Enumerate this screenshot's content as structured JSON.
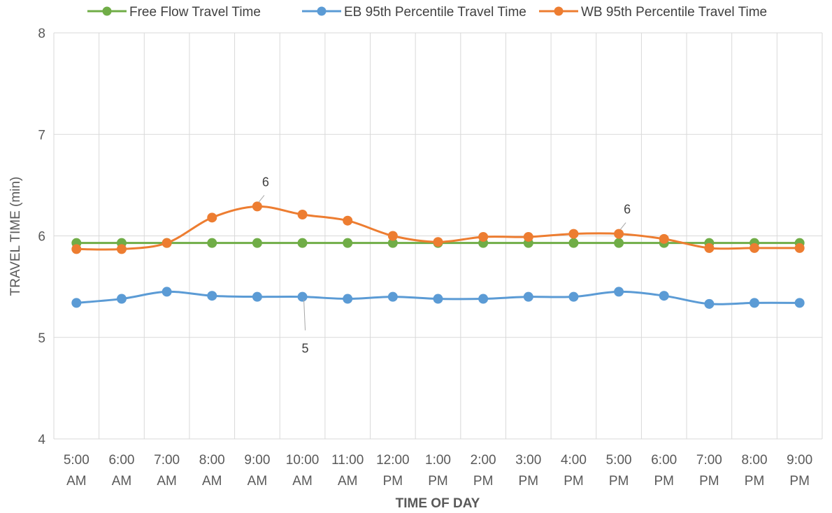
{
  "chart_data": {
    "type": "line",
    "title": "",
    "xlabel": "TIME OF DAY",
    "ylabel": "TRAVEL TIME (min)",
    "ylim": [
      4,
      8
    ],
    "yticks": [
      4,
      5,
      6,
      7,
      8
    ],
    "grid": true,
    "legend_position": "top",
    "categories": [
      [
        "5:00",
        "AM"
      ],
      [
        "6:00",
        "AM"
      ],
      [
        "7:00",
        "AM"
      ],
      [
        "8:00",
        "AM"
      ],
      [
        "9:00",
        "AM"
      ],
      [
        "10:00",
        "AM"
      ],
      [
        "11:00",
        "AM"
      ],
      [
        "12:00",
        "PM"
      ],
      [
        "1:00",
        "PM"
      ],
      [
        "2:00",
        "PM"
      ],
      [
        "3:00",
        "PM"
      ],
      [
        "4:00",
        "PM"
      ],
      [
        "5:00",
        "PM"
      ],
      [
        "6:00",
        "PM"
      ],
      [
        "7:00",
        "PM"
      ],
      [
        "8:00",
        "PM"
      ],
      [
        "9:00",
        "PM"
      ]
    ],
    "series": [
      {
        "name": "Free Flow Travel Time",
        "color": "#70AD47",
        "smooth": false,
        "values": [
          5.93,
          5.93,
          5.93,
          5.93,
          5.93,
          5.93,
          5.93,
          5.93,
          5.93,
          5.93,
          5.93,
          5.93,
          5.93,
          5.93,
          5.93,
          5.93,
          5.93
        ]
      },
      {
        "name": "EB 95th Percentile Travel Time",
        "color": "#5B9BD5",
        "smooth": true,
        "values": [
          5.34,
          5.38,
          5.45,
          5.41,
          5.4,
          5.4,
          5.38,
          5.4,
          5.38,
          5.38,
          5.4,
          5.4,
          5.45,
          5.41,
          5.33,
          5.34,
          5.34
        ]
      },
      {
        "name": "WB 95th Percentile Travel Time",
        "color": "#ED7D31",
        "smooth": true,
        "values": [
          5.87,
          5.87,
          5.93,
          6.18,
          6.29,
          6.21,
          6.15,
          6.0,
          5.94,
          5.99,
          5.99,
          6.02,
          6.02,
          5.97,
          5.88,
          5.88,
          5.88
        ]
      }
    ],
    "annotations": [
      {
        "series": 2,
        "index": 4,
        "text": "6"
      },
      {
        "series": 2,
        "index": 12,
        "text": "6"
      },
      {
        "series": 1,
        "index": 5,
        "text": "5"
      }
    ]
  }
}
